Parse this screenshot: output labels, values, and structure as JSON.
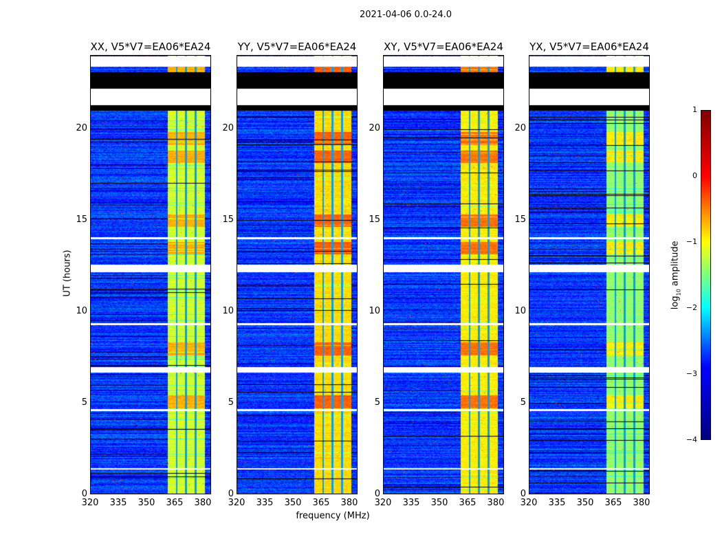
{
  "suptitle": "2021-04-06 0.0-24.0",
  "chart_data": {
    "type": "heatmap",
    "xlabel": "frequency (MHz)",
    "ylabel": "UT (hours)",
    "xlim": [
      320,
      384.4
    ],
    "ylim": [
      0,
      24
    ],
    "xticks": [
      "320",
      "335",
      "350",
      "365",
      "380"
    ],
    "xtick_values": [
      320,
      335,
      350,
      365,
      380
    ],
    "yticks": [
      "0",
      "5",
      "10",
      "15",
      "20"
    ],
    "ytick_values": [
      0,
      5,
      10,
      15,
      20
    ],
    "panels": [
      {
        "title": "XX, V5*V7=EA06*EA24",
        "band_level": -1.1
      },
      {
        "title": "YY, V5*V7=EA06*EA24",
        "band_level": -0.7
      },
      {
        "title": "XY, V5*V7=EA06*EA24",
        "band_level": -0.8
      },
      {
        "title": "YX, V5*V7=EA06*EA24",
        "band_level": -1.4
      }
    ],
    "no_data_hours": [
      [
        23.4,
        24
      ],
      [
        21.3,
        22.2
      ],
      [
        14.0,
        14.1
      ],
      [
        12.2,
        12.6
      ],
      [
        9.3,
        9.4
      ],
      [
        6.7,
        7.0
      ],
      [
        4.6,
        4.7
      ],
      [
        1.4,
        1.5
      ]
    ],
    "flagged_black_hours": [
      [
        22.2,
        23.1
      ],
      [
        21.0,
        21.3
      ]
    ],
    "bright_band_mhz": [
      360.7,
      380.4
    ],
    "band_channel_gaps_mhz": [
      365.5,
      370.5,
      375.6
    ],
    "hot_hours": [
      5.1,
      8.0,
      13.5,
      15.0,
      18.5,
      19.5,
      23.2
    ],
    "colorbar": {
      "label_main": "log",
      "label_sub": "10",
      "label_rest": " amplitude",
      "ticks": [
        "1",
        "0",
        "−1",
        "−2",
        "−3",
        "−4"
      ],
      "range": [
        -4,
        1
      ]
    }
  }
}
